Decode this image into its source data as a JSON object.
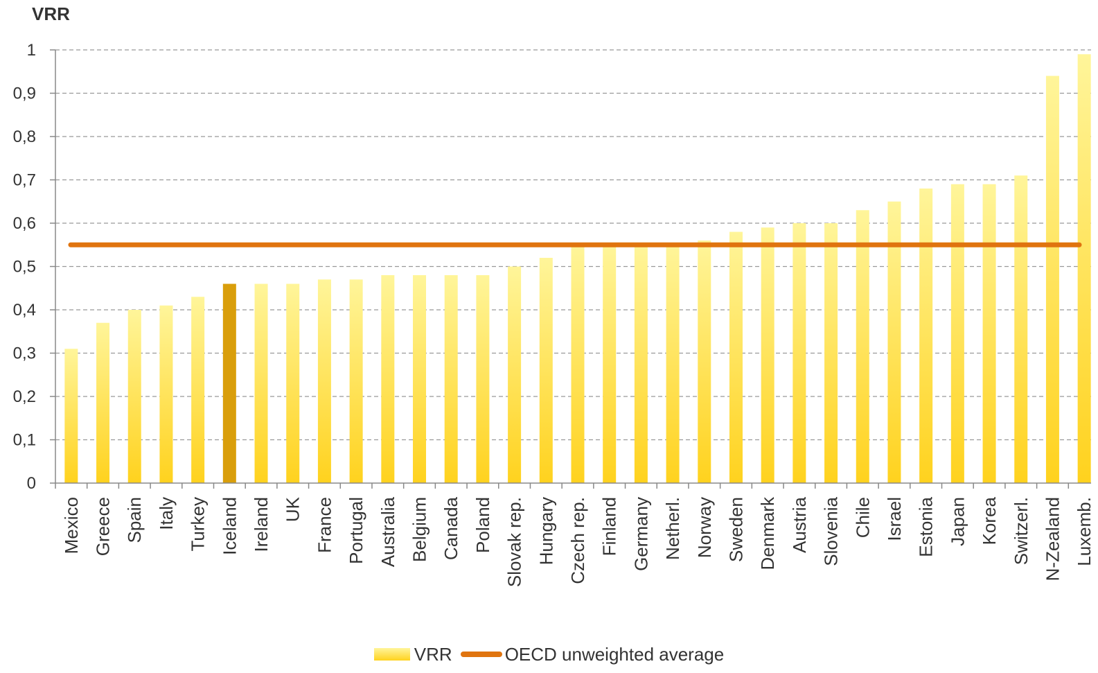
{
  "chart_data": {
    "type": "bar",
    "ylabel": "VRR",
    "xlabel": "",
    "ylim": [
      0,
      1
    ],
    "yticks": [
      "0",
      "0,1",
      "0,2",
      "0,3",
      "0,4",
      "0,5",
      "0,6",
      "0,7",
      "0,8",
      "0,9",
      "1"
    ],
    "grid": true,
    "categories": [
      "Mexico",
      "Greece",
      "Spain",
      "Italy",
      "Turkey",
      "Iceland",
      "Ireland",
      "UK",
      "France",
      "Portugal",
      "Australia",
      "Belgium",
      "Canada",
      "Poland",
      "Slovak rep.",
      "Hungary",
      "Czech rep.",
      "Finland",
      "Germany",
      "Netherl.",
      "Norway",
      "Sweden",
      "Denmark",
      "Austria",
      "Slovenia",
      "Chile",
      "Israel",
      "Estonia",
      "Japan",
      "Korea",
      "Switzerl.",
      "N-Zealand",
      "Luxemb."
    ],
    "series": [
      {
        "name": "VRR",
        "values": [
          0.31,
          0.37,
          0.4,
          0.41,
          0.43,
          0.46,
          0.46,
          0.46,
          0.47,
          0.47,
          0.48,
          0.48,
          0.48,
          0.48,
          0.5,
          0.52,
          0.55,
          0.55,
          0.55,
          0.55,
          0.56,
          0.58,
          0.59,
          0.6,
          0.6,
          0.63,
          0.65,
          0.68,
          0.69,
          0.69,
          0.71,
          0.94,
          0.99
        ],
        "highlight_category": "Iceland"
      },
      {
        "name": "OECD unweighted average",
        "type": "line",
        "value": 0.55
      }
    ],
    "legend_position": "bottom",
    "colors": {
      "bar_top": "#fff59a",
      "bar_bottom": "#ffd21e",
      "highlight": "#d99e0b",
      "average_line": "#e0740f",
      "grid": "#999999"
    }
  }
}
